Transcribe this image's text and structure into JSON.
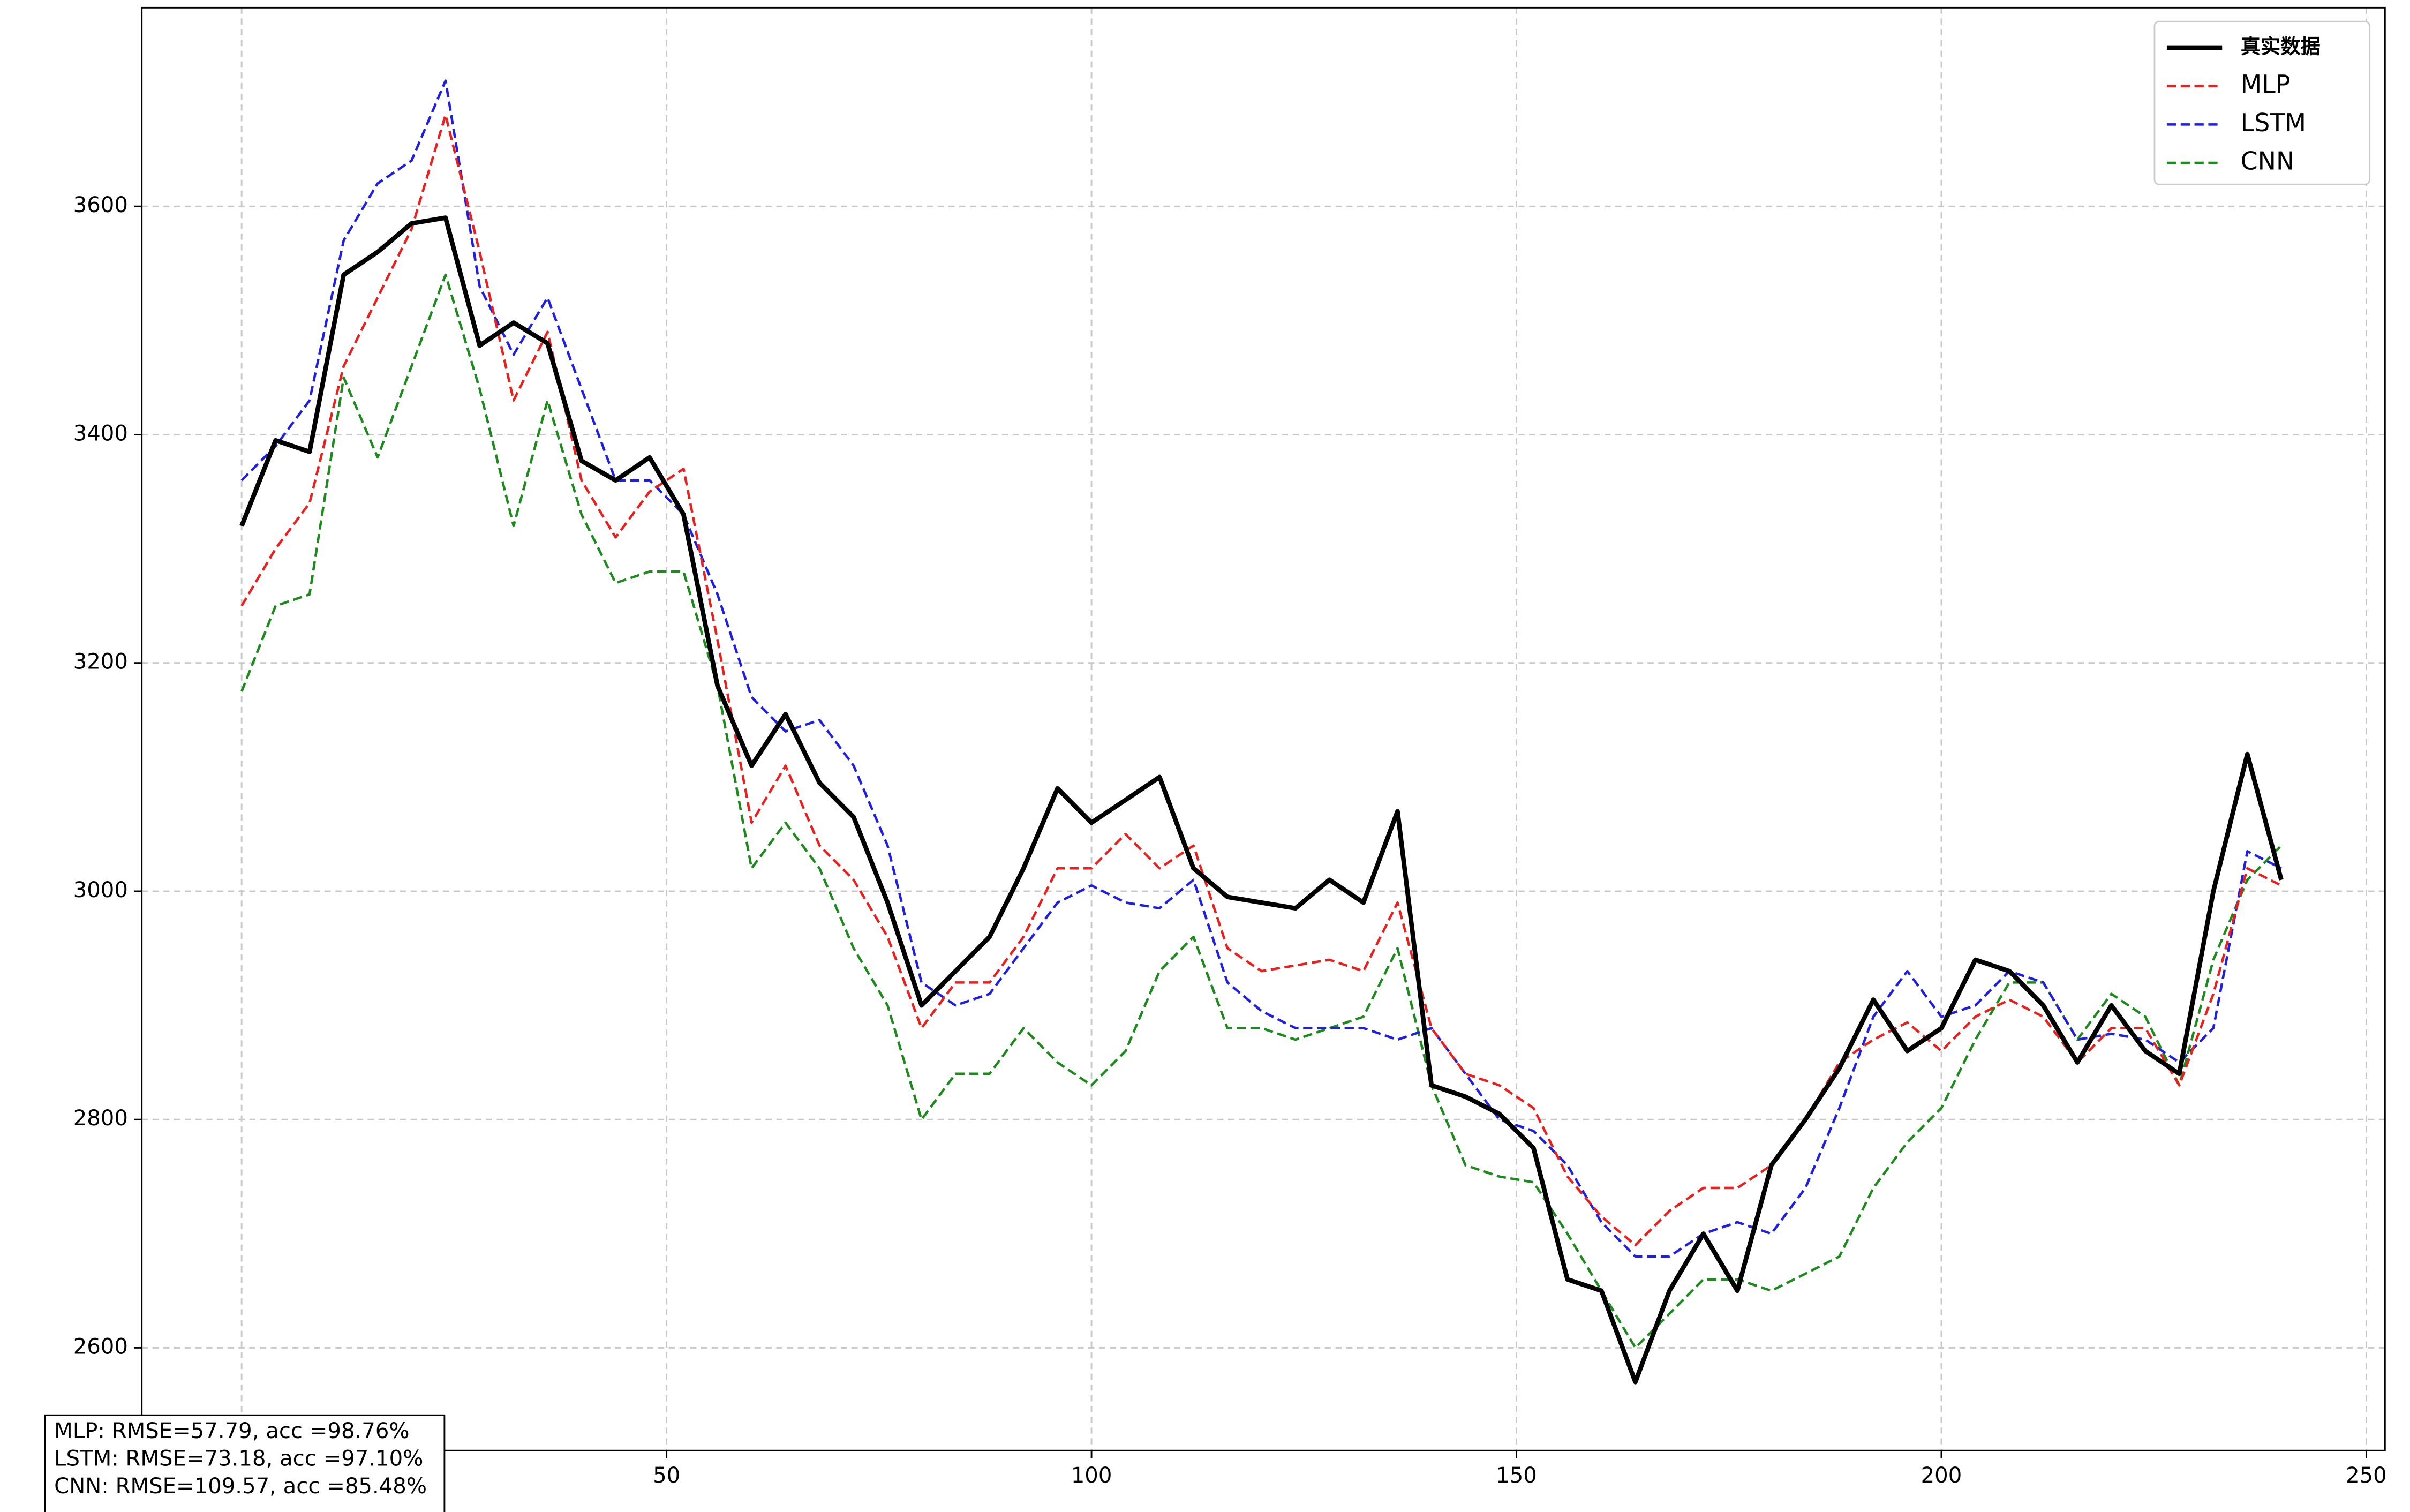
{
  "chart_data": {
    "type": "line",
    "x": [
      0,
      4,
      8,
      12,
      16,
      20,
      24,
      28,
      32,
      36,
      40,
      44,
      48,
      52,
      56,
      60,
      64,
      68,
      72,
      76,
      80,
      84,
      88,
      92,
      96,
      100,
      104,
      108,
      112,
      116,
      120,
      124,
      128,
      132,
      136,
      140,
      144,
      148,
      152,
      156,
      160,
      164,
      168,
      172,
      176,
      180,
      184,
      188,
      192,
      196,
      200,
      204,
      208,
      212,
      216,
      220,
      224,
      228,
      232,
      236,
      240
    ],
    "series": [
      {
        "name": "真实数据",
        "color": "#000000",
        "values": [
          3320,
          3395,
          3385,
          3540,
          3560,
          3585,
          3590,
          3478,
          3498,
          3480,
          3377,
          3360,
          3380,
          3330,
          3180,
          3110,
          3155,
          3095,
          3065,
          2990,
          2900,
          2930,
          2960,
          3020,
          3090,
          3060,
          3080,
          3100,
          3020,
          2995,
          2990,
          2985,
          3010,
          2990,
          3070,
          2830,
          2820,
          2805,
          2775,
          2660,
          2650,
          2570,
          2650,
          2700,
          2650,
          2760,
          2800,
          2845,
          2905,
          2860,
          2880,
          2940,
          2930,
          2900,
          2850,
          2900,
          2860,
          2840,
          3000,
          3120,
          3010
        ]
      },
      {
        "name": "MLP",
        "color": "#e8201e",
        "values": [
          3250,
          3300,
          3340,
          3460,
          3520,
          3580,
          3680,
          3560,
          3430,
          3490,
          3360,
          3310,
          3350,
          3370,
          3220,
          3060,
          3110,
          3040,
          3010,
          2960,
          2880,
          2920,
          2920,
          2960,
          3020,
          3020,
          3050,
          3020,
          3040,
          2950,
          2930,
          2935,
          2940,
          2930,
          2990,
          2880,
          2840,
          2830,
          2810,
          2750,
          2715,
          2690,
          2720,
          2740,
          2740,
          2760,
          2800,
          2850,
          2870,
          2885,
          2860,
          2890,
          2905,
          2890,
          2850,
          2880,
          2880,
          2830,
          2910,
          3020,
          3005
        ]
      },
      {
        "name": "LSTM",
        "color": "#1f1fe0",
        "values": [
          3360,
          3390,
          3430,
          3570,
          3620,
          3640,
          3710,
          3530,
          3470,
          3520,
          3440,
          3360,
          3360,
          3330,
          3260,
          3170,
          3140,
          3150,
          3110,
          3040,
          2920,
          2900,
          2910,
          2950,
          2990,
          3005,
          2990,
          2985,
          3010,
          2920,
          2895,
          2880,
          2880,
          2880,
          2870,
          2880,
          2840,
          2800,
          2790,
          2760,
          2710,
          2680,
          2680,
          2700,
          2710,
          2700,
          2740,
          2810,
          2890,
          2930,
          2890,
          2900,
          2930,
          2920,
          2870,
          2875,
          2870,
          2850,
          2880,
          3035,
          3020
        ]
      },
      {
        "name": "CNN",
        "color": "#1e8a1e",
        "values": [
          3175,
          3250,
          3260,
          3450,
          3380,
          3460,
          3540,
          3440,
          3320,
          3430,
          3330,
          3270,
          3280,
          3280,
          3180,
          3020,
          3060,
          3020,
          2950,
          2900,
          2800,
          2840,
          2840,
          2880,
          2850,
          2830,
          2860,
          2930,
          2960,
          2880,
          2880,
          2870,
          2880,
          2890,
          2950,
          2830,
          2760,
          2750,
          2745,
          2700,
          2650,
          2600,
          2630,
          2660,
          2660,
          2650,
          2665,
          2680,
          2740,
          2780,
          2810,
          2870,
          2920,
          2920,
          2870,
          2910,
          2890,
          2830,
          2940,
          3010,
          3040
        ]
      }
    ],
    "xlim": [
      -11.75,
      252.2
    ],
    "ylim": [
      2510,
      3774
    ],
    "xticks": [
      0,
      50,
      100,
      150,
      200,
      250
    ],
    "yticks": [
      2600,
      2800,
      3000,
      3200,
      3400,
      3600
    ],
    "grid": true,
    "legend": "upper right",
    "stats": [
      "MLP: RMSE=57.79, acc =98.76%",
      "LSTM: RMSE=73.18, acc =97.10%",
      "CNN: RMSE=109.57, acc =85.48%"
    ]
  }
}
